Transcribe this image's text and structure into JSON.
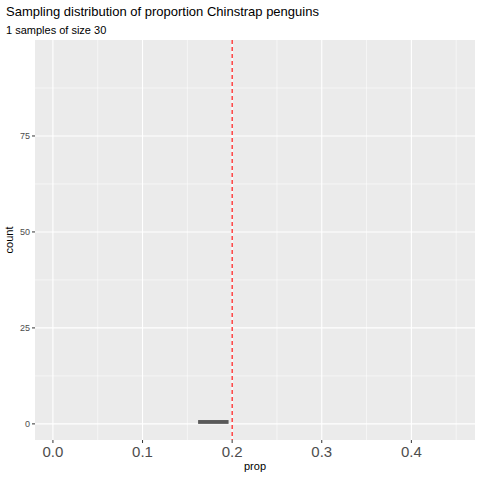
{
  "chart_data": {
    "type": "histogram",
    "title": "Sampling distribution of proportion Chinstrap penguins",
    "subtitle": "1 samples of size 30",
    "x_label": "prop",
    "y_label": "count",
    "bins": [
      0.162,
      0.196
    ],
    "counts": [
      1
    ],
    "color": "#595959",
    "vline": {
      "value": 0.2,
      "color": "#ff0000",
      "line_style": "dashed"
    },
    "xlim": [
      -0.02,
      0.471
    ],
    "xticks": [
      {
        "value": 0,
        "label": "0.0"
      },
      0.1,
      0.2,
      0.3,
      0.4
    ],
    "ylim": [
      -4.2,
      100
    ],
    "yticks": [
      0,
      25,
      50,
      75
    ],
    "grid": true
  }
}
